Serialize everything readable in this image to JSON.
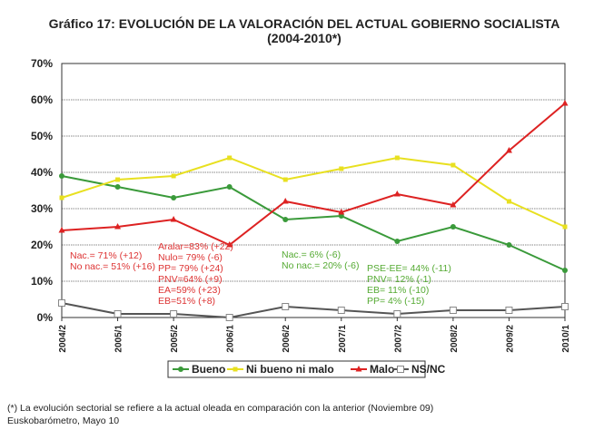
{
  "chart_data": {
    "type": "line",
    "title": "Gráfico 17: EVOLUCIÓN DE LA VALORACIÓN DEL ACTUAL GOBIERNO SOCIALISTA",
    "subtitle": "(2004-2010*)",
    "categories": [
      "2004/2",
      "2005/1",
      "2005/2",
      "2006/1",
      "2006/2",
      "2007/1",
      "2007/2",
      "2008/2",
      "2009/2",
      "2010/1"
    ],
    "ylim": [
      0,
      70
    ],
    "yticks": [
      "0%",
      "10%",
      "20%",
      "30%",
      "40%",
      "50%",
      "60%",
      "70%"
    ],
    "grid": true,
    "legend_position": "bottom",
    "series": [
      {
        "name": "Bueno",
        "color": "#3a9a3a",
        "marker": "circle",
        "values": [
          39,
          36,
          33,
          36,
          27,
          28,
          21,
          25,
          20,
          13
        ]
      },
      {
        "name": "Ni bueno ni malo",
        "color": "#e8e020",
        "marker": "square",
        "values": [
          33,
          38,
          39,
          44,
          38,
          41,
          44,
          42,
          32,
          25
        ]
      },
      {
        "name": "Malo",
        "color": "#dd2222",
        "marker": "triangle",
        "values": [
          24,
          25,
          27,
          20,
          32,
          29,
          34,
          31,
          46,
          59
        ]
      },
      {
        "name": "NS/NC",
        "color": "#555555",
        "marker": "open-square",
        "values": [
          4,
          1,
          1,
          0,
          3,
          2,
          1,
          2,
          2,
          3
        ]
      }
    ],
    "annotations": [
      {
        "color": "#dd3333",
        "lines": [
          "Nac.= 71% (+12)",
          "No nac.= 51% (+16)"
        ]
      },
      {
        "color": "#dd3333",
        "lines": [
          "Aralar=83% (+22)",
          "Nulo= 79% (-6)",
          "PP= 79% (+24)",
          "PNV=64% (+9)",
          "EA=59% (+23)",
          "EB=51% (+8)"
        ]
      },
      {
        "color": "#55aa33",
        "lines": [
          "Nac.= 6% (-6)",
          "No nac.= 20% (-6)"
        ]
      },
      {
        "color": "#55aa33",
        "lines": [
          "PSE-EE= 44% (-11)",
          "PNV= 12% (-1)",
          "EB= 11% (-10)",
          "PP= 4% (-15)"
        ]
      }
    ]
  },
  "footer": {
    "note": "(*) La evolución sectorial se refiere a la actual oleada en comparación con la anterior (Noviembre 09)",
    "source": "Euskobarómetro, Mayo 10"
  }
}
